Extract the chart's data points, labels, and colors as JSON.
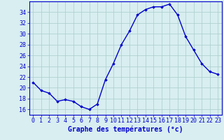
{
  "hours": [
    0,
    1,
    2,
    3,
    4,
    5,
    6,
    7,
    8,
    9,
    10,
    11,
    12,
    13,
    14,
    15,
    16,
    17,
    18,
    19,
    20,
    21,
    22,
    23
  ],
  "temps": [
    21.0,
    19.5,
    19.0,
    17.5,
    17.8,
    17.5,
    16.5,
    16.0,
    17.0,
    21.5,
    24.5,
    28.0,
    30.5,
    33.5,
    34.5,
    35.0,
    35.0,
    35.5,
    33.5,
    29.5,
    27.0,
    24.5,
    23.0,
    22.5
  ],
  "line_color": "#0000cc",
  "marker": "D",
  "marker_size": 1.8,
  "background_color": "#d8eef0",
  "grid_color": "#aacccc",
  "xlabel": "Graphe des températures (°c)",
  "xlabel_color": "#0000cc",
  "tick_color": "#0000cc",
  "ylim": [
    15.0,
    36.0
  ],
  "yticks": [
    16,
    18,
    20,
    22,
    24,
    26,
    28,
    30,
    32,
    34
  ],
  "xticks": [
    0,
    1,
    2,
    3,
    4,
    5,
    6,
    7,
    8,
    9,
    10,
    11,
    12,
    13,
    14,
    15,
    16,
    17,
    18,
    19,
    20,
    21,
    22,
    23
  ],
  "xlim": [
    -0.5,
    23.5
  ],
  "linewidth": 1.0,
  "tick_fontsize": 6.0,
  "xlabel_fontsize": 7.0
}
